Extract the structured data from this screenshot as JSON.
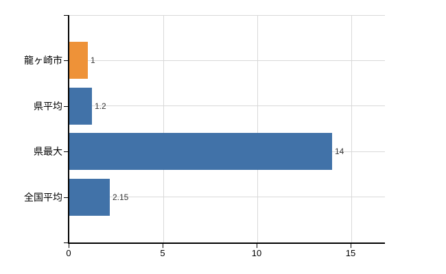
{
  "chart_data": {
    "type": "bar",
    "orientation": "horizontal",
    "categories": [
      "龍ヶ崎市",
      "県平均",
      "県最大",
      "全国平均"
    ],
    "values": [
      1,
      1.2,
      14,
      2.15
    ],
    "value_labels": [
      "1",
      "1.2",
      "14",
      "2.15"
    ],
    "bar_colors": [
      "#EE9238",
      "#4172A8",
      "#4172A8",
      "#4172A8"
    ],
    "x_ticks": [
      0,
      5,
      10,
      15
    ],
    "x_tick_labels": [
      "0",
      "5",
      "10",
      "15"
    ],
    "xlim": [
      0,
      16.8
    ],
    "grid": true,
    "legend": false,
    "title": "",
    "xlabel": "",
    "ylabel": "",
    "colors": {
      "highlight_bar": "#EE9238",
      "default_bar": "#4172A8",
      "gridline": "#D8D8D8",
      "axis": "#000000",
      "category_text": "#000000",
      "tick_text": "#000000",
      "value_text": "#333333",
      "background": "#FFFFFF"
    }
  }
}
